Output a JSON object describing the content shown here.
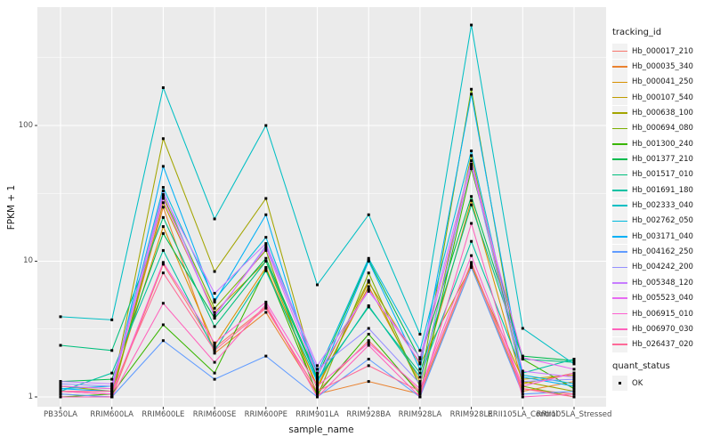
{
  "figure": {
    "bg": "#FFFFFF",
    "panel_bg": "#EBEBEB",
    "grid_color": "#FFFFFF",
    "tick_color": "#333333",
    "axis_text_color": "#4D4D4D",
    "title_color": "#1A1A1A",
    "point_color": "#000000",
    "legend_key_bg": "#F2F2F2"
  },
  "chart_data": {
    "type": "line",
    "title": "",
    "xlabel": "sample_name",
    "ylabel": "FPKM + 1",
    "yscale": "log10",
    "ylim": [
      0.9,
      700
    ],
    "yticks": [
      1,
      10,
      100
    ],
    "grid": true,
    "legend_position": "right",
    "point_shape": "black-square",
    "categories": [
      "PB350LA",
      "RRIM600LA",
      "RRIM600LE",
      "RRIM600SE",
      "RRIM600PE",
      "RRIM901LA",
      "RRIM928BA",
      "RRIM928LA",
      "RRIM928LE",
      "RRII105LA_Control",
      "RRII105LA_Stressed"
    ],
    "series": [
      {
        "name": "Hb_000017_210",
        "color": "#F8766D",
        "values": [
          1.05,
          1.0,
          9.5,
          2.3,
          4.6,
          1.1,
          2.6,
          1.1,
          9.5,
          1.15,
          1.05
        ]
      },
      {
        "name": "Hb_000035_340",
        "color": "#EA8331",
        "values": [
          1.1,
          1.05,
          25,
          2.1,
          4.2,
          1.05,
          1.3,
          1.05,
          9.0,
          1.1,
          1.3
        ]
      },
      {
        "name": "Hb_000041_250",
        "color": "#D89000",
        "values": [
          1.2,
          1.15,
          18,
          2.4,
          9.0,
          1.2,
          6.5,
          1.3,
          28,
          1.25,
          1.5
        ]
      },
      {
        "name": "Hb_000107_540",
        "color": "#C09B00",
        "values": [
          1.0,
          1.0,
          27,
          4.2,
          10,
          1.15,
          7.0,
          1.75,
          9.2,
          1.35,
          1.45
        ]
      },
      {
        "name": "Hb_000638_100",
        "color": "#A3A500",
        "values": [
          1.2,
          1.1,
          80,
          8.4,
          29,
          1.3,
          7.2,
          1.2,
          60,
          1.3,
          1.1
        ]
      },
      {
        "name": "Hb_000694_080",
        "color": "#7CAE00",
        "values": [
          1.0,
          1.0,
          30,
          4.5,
          12,
          1.0,
          8.2,
          1.2,
          185,
          1.2,
          1.0
        ]
      },
      {
        "name": "Hb_001300_240",
        "color": "#39B600",
        "values": [
          1.0,
          1.05,
          3.4,
          1.5,
          8.8,
          1.05,
          2.9,
          1.05,
          48,
          1.9,
          1.15
        ]
      },
      {
        "name": "Hb_001377_210",
        "color": "#00BB4E",
        "values": [
          1.3,
          1.35,
          16,
          3.8,
          10.5,
          1.4,
          10.2,
          1.9,
          30,
          2.0,
          1.85
        ]
      },
      {
        "name": "Hb_001517_010",
        "color": "#00BF7D",
        "values": [
          2.4,
          2.2,
          21,
          3.3,
          10,
          1.35,
          4.6,
          1.5,
          26,
          1.9,
          1.8
        ]
      },
      {
        "name": "Hb_001691_180",
        "color": "#00C1A3",
        "values": [
          1.1,
          1.5,
          12,
          2.2,
          8.5,
          1.3,
          4.7,
          1.4,
          14,
          1.5,
          1.9
        ]
      },
      {
        "name": "Hb_002333_040",
        "color": "#00BFC4",
        "values": [
          3.9,
          3.7,
          190,
          20.5,
          100,
          6.7,
          22,
          2.9,
          550,
          3.2,
          1.75
        ]
      },
      {
        "name": "Hb_002762_050",
        "color": "#00BADE",
        "values": [
          1.15,
          1.2,
          35,
          5.2,
          15,
          1.5,
          10.5,
          2.2,
          65,
          1.45,
          1.25
        ]
      },
      {
        "name": "Hb_003171_040",
        "color": "#00B0F6",
        "values": [
          1.15,
          1.1,
          50,
          5.0,
          22,
          1.25,
          10.0,
          1.6,
          170,
          1.4,
          1.2
        ]
      },
      {
        "name": "Hb_004162_250",
        "color": "#619CFF",
        "values": [
          1.05,
          1.0,
          2.6,
          1.35,
          2.0,
          1.0,
          1.9,
          1.0,
          9.0,
          1.05,
          1.1
        ]
      },
      {
        "name": "Hb_004242_200",
        "color": "#9590FF",
        "values": [
          1.25,
          1.2,
          33,
          3.9,
          13,
          1.6,
          3.2,
          1.25,
          52,
          1.3,
          1.35
        ]
      },
      {
        "name": "Hb_005348_120",
        "color": "#C77CFF",
        "values": [
          1.3,
          1.25,
          31,
          5.8,
          13.5,
          1.7,
          6.0,
          1.95,
          55,
          1.55,
          1.4
        ]
      },
      {
        "name": "Hb_005523_040",
        "color": "#E76BF3",
        "values": [
          1.2,
          1.15,
          29,
          4.0,
          12.5,
          1.45,
          6.2,
          1.8,
          50,
          1.95,
          1.6
        ]
      },
      {
        "name": "Hb_006915_010",
        "color": "#FD61D1",
        "values": [
          1.1,
          1.05,
          9.8,
          2.5,
          5.0,
          1.2,
          2.5,
          1.15,
          11,
          1.2,
          1.5
        ]
      },
      {
        "name": "Hb_006970_030",
        "color": "#FF62BC",
        "values": [
          1.0,
          1.0,
          4.9,
          1.8,
          4.8,
          1.0,
          2.4,
          1.0,
          19,
          1.0,
          1.05
        ]
      },
      {
        "name": "Hb_026437_020",
        "color": "#FF6A98",
        "values": [
          1.1,
          1.1,
          8.2,
          2.2,
          4.5,
          1.1,
          1.7,
          1.1,
          9.8,
          1.15,
          1.0
        ]
      }
    ],
    "legend": {
      "tracking_id_title": "tracking_id",
      "quant_status_title": "quant_status",
      "quant_status_items": [
        "OK"
      ]
    }
  }
}
